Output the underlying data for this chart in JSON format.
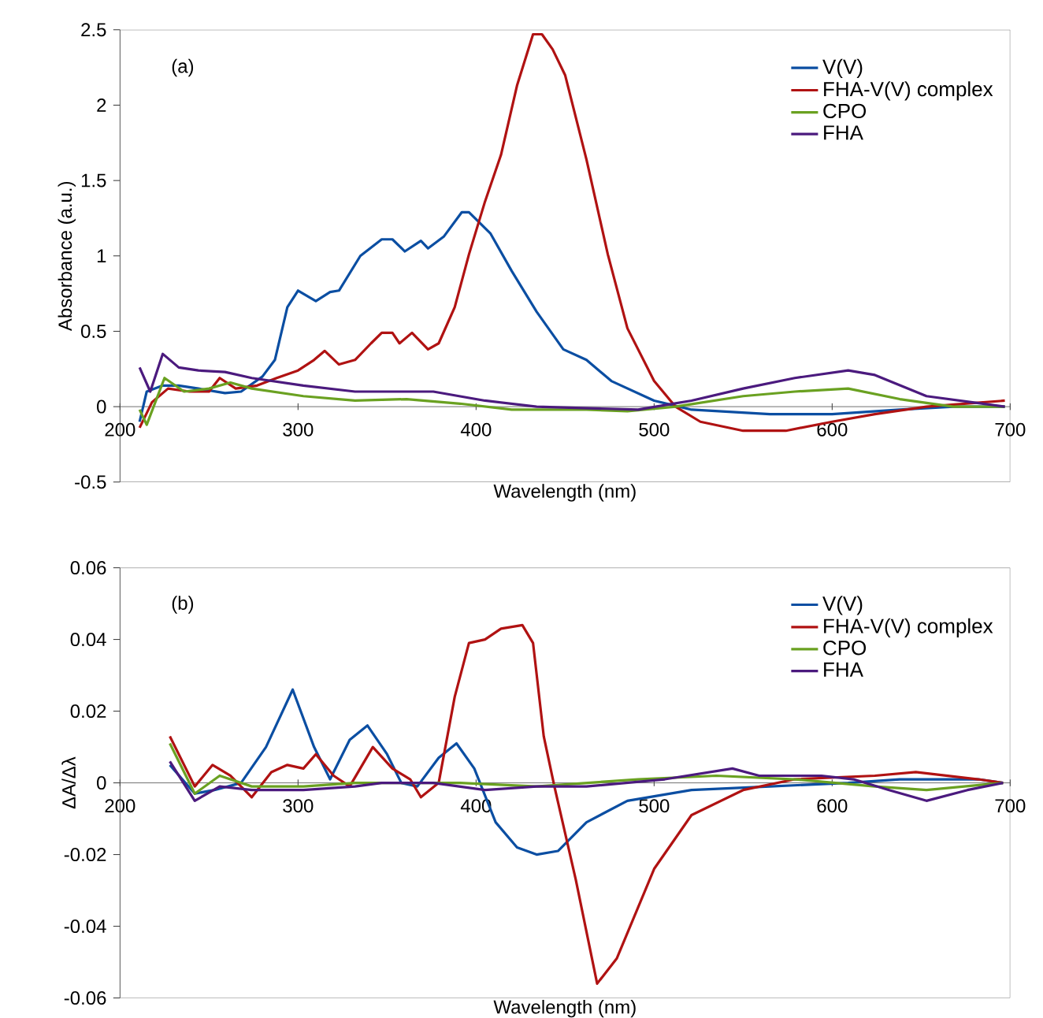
{
  "chart_data": [
    {
      "type": "line",
      "xlabel": "Wavelength (nm)",
      "ylabel": "Absorbance (a.u.)",
      "annotations": [
        "(a)"
      ],
      "xlim": [
        200,
        700
      ],
      "ylim": [
        -0.5,
        2.5
      ],
      "xticks": [
        200,
        300,
        400,
        500,
        600,
        700
      ],
      "yticks": [
        -0.5,
        0,
        0.5,
        1,
        1.5,
        2,
        2.5
      ],
      "legend": "top right",
      "series": [
        {
          "name": "V(V)",
          "color": "#0b4ea2",
          "x": [
            211,
            215,
            224,
            233,
            244,
            259,
            268,
            280,
            287,
            294,
            300,
            310,
            318,
            323,
            335,
            347,
            353,
            360,
            369,
            373,
            382,
            392,
            396,
            408,
            420,
            434,
            449,
            462,
            476,
            500,
            521,
            565,
            600,
            638,
            668,
            697
          ],
          "values": [
            -0.1,
            0.1,
            0.14,
            0.14,
            0.12,
            0.09,
            0.1,
            0.2,
            0.31,
            0.66,
            0.77,
            0.7,
            0.76,
            0.77,
            1.0,
            1.11,
            1.11,
            1.03,
            1.1,
            1.05,
            1.13,
            1.29,
            1.29,
            1.15,
            0.9,
            0.63,
            0.38,
            0.31,
            0.17,
            0.04,
            -0.02,
            -0.05,
            -0.05,
            -0.02,
            0,
            0
          ]
        },
        {
          "name": "FHA-V(V) complex",
          "color": "#b01212",
          "x": [
            211,
            218,
            227,
            239,
            250,
            256,
            265,
            277,
            288,
            300,
            309,
            315,
            323,
            332,
            341,
            347,
            353,
            357,
            364,
            373,
            379,
            388,
            396,
            405,
            414,
            423,
            432,
            437,
            443,
            450,
            462,
            474,
            485,
            500,
            512,
            526,
            550,
            574,
            600,
            624,
            653,
            697
          ],
          "values": [
            -0.14,
            0.03,
            0.12,
            0.1,
            0.1,
            0.19,
            0.12,
            0.14,
            0.19,
            0.24,
            0.31,
            0.37,
            0.28,
            0.31,
            0.42,
            0.49,
            0.49,
            0.42,
            0.49,
            0.38,
            0.42,
            0.66,
            1.01,
            1.36,
            1.67,
            2.13,
            2.47,
            2.47,
            2.37,
            2.2,
            1.64,
            1.01,
            0.52,
            0.17,
            0,
            -0.1,
            -0.16,
            -0.16,
            -0.1,
            -0.05,
            0,
            0.04
          ]
        },
        {
          "name": "CPO",
          "color": "#6aa121",
          "x": [
            211,
            215,
            225,
            236,
            250,
            262,
            274,
            303,
            332,
            361,
            391,
            420,
            462,
            485,
            512,
            550,
            579,
            609,
            638,
            668,
            697
          ],
          "values": [
            -0.02,
            -0.12,
            0.19,
            0.1,
            0.12,
            0.16,
            0.12,
            0.07,
            0.04,
            0.05,
            0.02,
            -0.02,
            -0.02,
            -0.03,
            0,
            0.07,
            0.1,
            0.12,
            0.05,
            0,
            0
          ]
        },
        {
          "name": "FHA",
          "color": "#4b1a7e",
          "x": [
            211,
            217,
            224,
            233,
            244,
            259,
            274,
            303,
            332,
            361,
            376,
            405,
            434,
            491,
            521,
            550,
            579,
            609,
            624,
            653,
            697
          ],
          "values": [
            0.26,
            0.1,
            0.35,
            0.26,
            0.24,
            0.23,
            0.19,
            0.14,
            0.1,
            0.1,
            0.1,
            0.04,
            0,
            -0.02,
            0.04,
            0.12,
            0.19,
            0.24,
            0.21,
            0.07,
            0
          ]
        }
      ]
    },
    {
      "type": "line",
      "xlabel": "Wavelength (nm)",
      "ylabel": "ΔA/Δλ",
      "annotations": [
        "(b)"
      ],
      "xlim": [
        200,
        700
      ],
      "ylim": [
        -0.06,
        0.06
      ],
      "xticks": [
        200,
        300,
        400,
        500,
        600,
        700
      ],
      "yticks": [
        -0.06,
        -0.04,
        -0.02,
        0,
        0.02,
        0.04,
        0.06
      ],
      "legend": "top right",
      "series": [
        {
          "name": "V(V)",
          "color": "#0b4ea2",
          "x": [
            228,
            242,
            253,
            268,
            282,
            297,
            309,
            318,
            329,
            339,
            350,
            358,
            367,
            379,
            389,
            399,
            411,
            423,
            434,
            446,
            462,
            485,
            521,
            565,
            609,
            638,
            682,
            696
          ],
          "values": [
            0.005,
            -0.003,
            -0.002,
            0,
            0.01,
            0.026,
            0.01,
            0.001,
            0.012,
            0.016,
            0.008,
            0,
            -0.001,
            0.007,
            0.011,
            0.004,
            -0.011,
            -0.018,
            -0.02,
            -0.019,
            -0.011,
            -0.005,
            -0.002,
            -0.001,
            0,
            0.001,
            0.001,
            0
          ]
        },
        {
          "name": "FHA-V(V) complex",
          "color": "#b01212",
          "x": [
            228,
            242,
            252,
            262,
            274,
            285,
            294,
            303,
            310,
            320,
            329,
            342,
            353,
            363,
            369,
            379,
            388,
            396,
            405,
            414,
            426,
            432,
            438,
            444,
            456,
            468,
            479,
            500,
            521,
            550,
            579,
            624,
            647,
            682,
            696
          ],
          "values": [
            0.013,
            -0.001,
            0.005,
            0.002,
            -0.004,
            0.003,
            0.005,
            0.004,
            0.008,
            0.002,
            -0.001,
            0.01,
            0.004,
            0.001,
            -0.004,
            0,
            0.024,
            0.039,
            0.04,
            0.043,
            0.044,
            0.039,
            0.013,
            -0.001,
            -0.027,
            -0.056,
            -0.049,
            -0.024,
            -0.009,
            -0.002,
            0.001,
            0.002,
            0.003,
            0.001,
            0
          ]
        },
        {
          "name": "CPO",
          "color": "#6aa121",
          "x": [
            228,
            242,
            256,
            274,
            303,
            332,
            361,
            391,
            434,
            491,
            535,
            579,
            624,
            653,
            696
          ],
          "values": [
            0.011,
            -0.003,
            0.002,
            -0.001,
            -0.001,
            0,
            0,
            0,
            -0.001,
            0.001,
            0.002,
            0.001,
            -0.001,
            -0.002,
            0
          ]
        },
        {
          "name": "FHA",
          "color": "#4b1a7e",
          "x": [
            228,
            242,
            256,
            274,
            303,
            332,
            347,
            376,
            405,
            434,
            462,
            506,
            544,
            559,
            594,
            612,
            632,
            653,
            676,
            696
          ],
          "values": [
            0.006,
            -0.005,
            -0.001,
            -0.002,
            -0.002,
            -0.001,
            0,
            0,
            -0.002,
            -0.001,
            -0.001,
            0.001,
            0.004,
            0.002,
            0.002,
            0.001,
            -0.002,
            -0.005,
            -0.002,
            0
          ]
        }
      ]
    }
  ]
}
